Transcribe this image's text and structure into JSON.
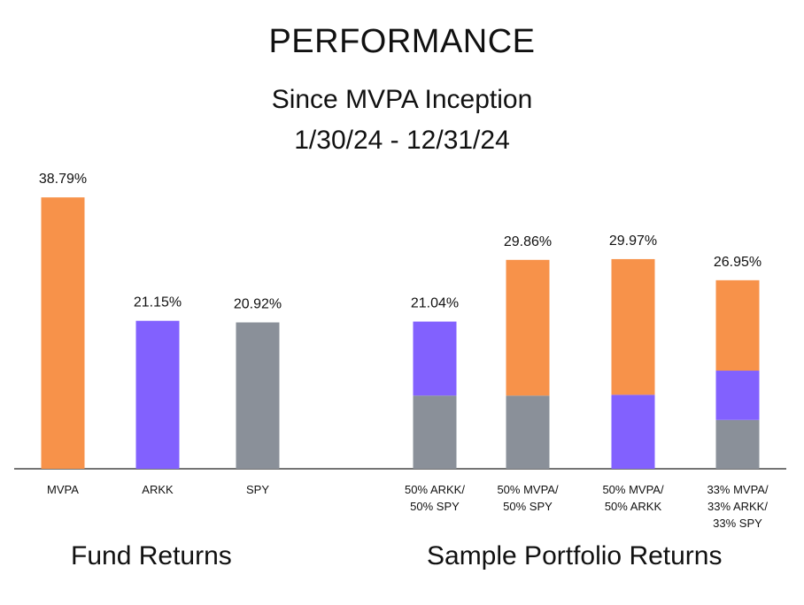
{
  "header": {
    "title": "PERFORMANCE",
    "subtitle_line1": "Since MVPA Inception",
    "subtitle_line2": "1/30/24 - 12/31/24"
  },
  "groups": {
    "left": "Fund Returns",
    "right": "Sample Portfolio Returns"
  },
  "colors": {
    "MVPA": "#F7924A",
    "ARKK": "#8261FE",
    "SPY": "#8A9099",
    "axis": "#222222"
  },
  "chart_data": {
    "type": "bar",
    "stacked": true,
    "ylim": [
      0,
      40
    ],
    "categories": [
      "MVPA",
      "ARKK",
      "SPY",
      "50% ARKK/\n50% SPY",
      "50% MVPA/\n50% SPY",
      "50% MVPA/\n50% ARKK",
      "33% MVPA/\n33% ARKK/\n33% SPY"
    ],
    "series": [
      {
        "name": "SPY",
        "values": [
          0,
          0,
          20.92,
          10.46,
          10.46,
          0,
          6.98
        ]
      },
      {
        "name": "ARKK",
        "values": [
          0,
          21.15,
          0,
          10.58,
          0,
          10.58,
          7.05
        ]
      },
      {
        "name": "MVPA",
        "values": [
          38.79,
          0,
          0,
          0,
          19.4,
          19.39,
          12.92
        ]
      }
    ],
    "totals": [
      38.79,
      21.15,
      20.92,
      21.04,
      29.86,
      29.97,
      26.95
    ],
    "data_labels": [
      "38.79%",
      "21.15%",
      "20.92%",
      "21.04%",
      "29.86%",
      "29.97%",
      "26.95%"
    ]
  }
}
